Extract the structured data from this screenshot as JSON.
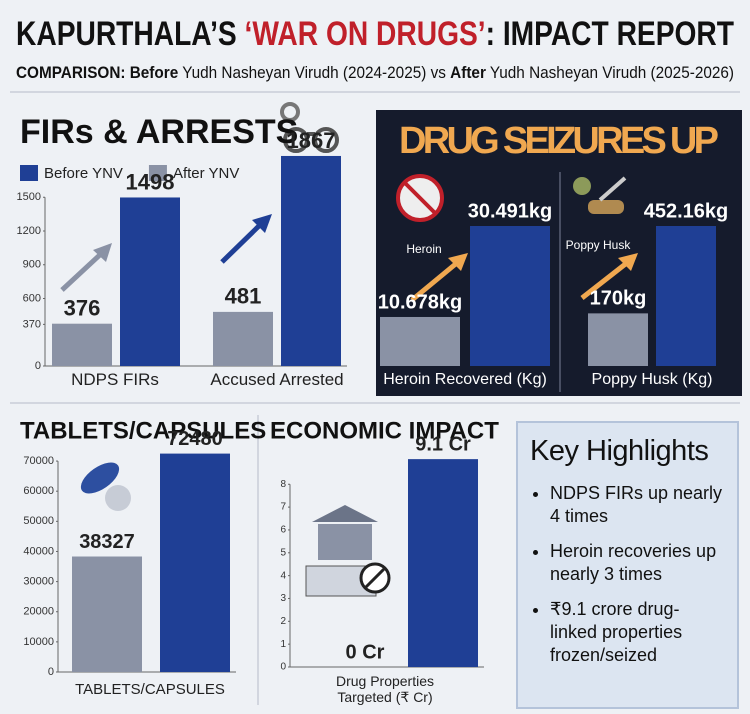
{
  "header": {
    "title": [
      "KAPURTHALA’S ",
      "‘WAR ON DRUGS’",
      ": IMPACT REPORT"
    ],
    "subtitle": [
      "COMPARISON:",
      " Before",
      " Yudh Nasheyan Virudh (2024-2025) vs ",
      "After",
      " Yudh Nasheyan Virudh (2025-2026)"
    ]
  },
  "chart_data": [
    {
      "type": "bar",
      "title": "FIRs & ARRESTS",
      "categories": [
        "NDPS FIRs",
        "Accused Arrested"
      ],
      "series": [
        {
          "name": "Before YNV",
          "color": "#1f3f95",
          "values": [
            1498,
            1867
          ]
        },
        {
          "name": "After YNV",
          "color": "#8a92a5",
          "values": [
            376,
            481
          ]
        }
      ],
      "ylim": [
        0,
        2000
      ],
      "yticks": [
        0,
        370,
        600,
        900,
        1200,
        1500
      ],
      "legend": "top-left"
    },
    {
      "type": "bar",
      "title": "DRUG SEIZURES UP",
      "icon_label": "Heroin",
      "categories": [
        "Heroin Recovered (Kg)"
      ],
      "series": [
        {
          "color": "#8a92a5",
          "values": [
            10.678
          ],
          "value_labels": [
            "10.678kg"
          ]
        },
        {
          "color": "#1f3f95",
          "values": [
            30.491
          ],
          "value_labels": [
            "30.491kg"
          ]
        }
      ]
    },
    {
      "type": "bar",
      "icon_label": "Poppy Husk",
      "categories": [
        "Poppy Husk (Kg)"
      ],
      "series": [
        {
          "color": "#8a92a5",
          "values": [
            170
          ],
          "value_labels": [
            "170kg"
          ]
        },
        {
          "color": "#1f3f95",
          "values": [
            452.16
          ],
          "value_labels": [
            "452.16kg"
          ]
        }
      ]
    },
    {
      "type": "bar",
      "title": "TABLETS/CAPSULES",
      "categories": [
        "TABLETS/CAPSULES"
      ],
      "series": [
        {
          "color": "#8a92a5",
          "values": [
            38327
          ]
        },
        {
          "color": "#1f3f95",
          "values": [
            72480
          ]
        }
      ],
      "ylim": [
        0,
        75000
      ],
      "yticks": [
        0,
        10000,
        20000,
        30000,
        40000,
        50000,
        60000,
        70000
      ]
    },
    {
      "type": "bar",
      "title": "ECONOMIC IMPACT",
      "categories": [
        "Drug Properties Targeted (₹ Cr)"
      ],
      "series": [
        {
          "color": "#8a92a5",
          "values": [
            0
          ],
          "value_labels": [
            "0 Cr"
          ]
        },
        {
          "color": "#1f3f95",
          "values": [
            9.1
          ],
          "value_labels": [
            "9.1 Cr"
          ]
        }
      ],
      "ylim": [
        0,
        9.5
      ],
      "yticks": [
        0,
        1,
        2,
        3,
        4,
        5,
        6,
        7,
        8
      ]
    }
  ],
  "highlights": {
    "title": "Key Highlights",
    "items": [
      "NDPS FIRs up nearly 4 times",
      "Heroin recoveries up nearly 3 times",
      "₹9.1 crore drug-linked properties frozen/seized"
    ]
  }
}
